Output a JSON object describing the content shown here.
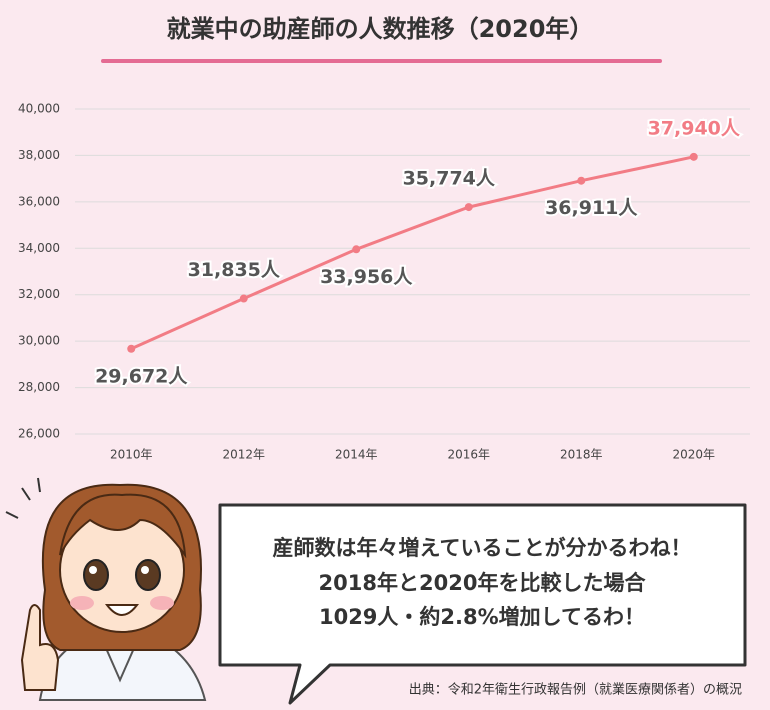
{
  "chart_data": {
    "type": "line",
    "title": "就業中の助産師の人数推移（2020年）",
    "categories": [
      "2010年",
      "2012年",
      "2014年",
      "2016年",
      "2018年",
      "2020年"
    ],
    "values": [
      29672,
      31835,
      33956,
      35774,
      36911,
      37940
    ],
    "value_labels": [
      "29,672人",
      "31,835人",
      "33,956人",
      "35,774人",
      "36,911人",
      "37,940人"
    ],
    "color": "#f27c85",
    "ylim": [
      26000,
      40000
    ],
    "yticks": [
      {
        "value": 26000,
        "label": "26,000"
      },
      {
        "value": 28000,
        "label": "28,000"
      },
      {
        "value": 30000,
        "label": "30,000"
      },
      {
        "value": 32000,
        "label": "32,000"
      },
      {
        "value": 34000,
        "label": "34,000"
      },
      {
        "value": 36000,
        "label": "36,000"
      },
      {
        "value": 38000,
        "label": "38,000"
      },
      {
        "value": 40000,
        "label": "40,000"
      }
    ],
    "grid": true
  },
  "speech_bubble": {
    "lines": [
      "産師数は年々増えていることが分かるわね！",
      "2018年と2020年を比較した場合",
      "1029人・約2.8%増加してるわ！"
    ]
  },
  "source": "出典：令和2年衛生行政報告例（就業医療関係者）の概況"
}
